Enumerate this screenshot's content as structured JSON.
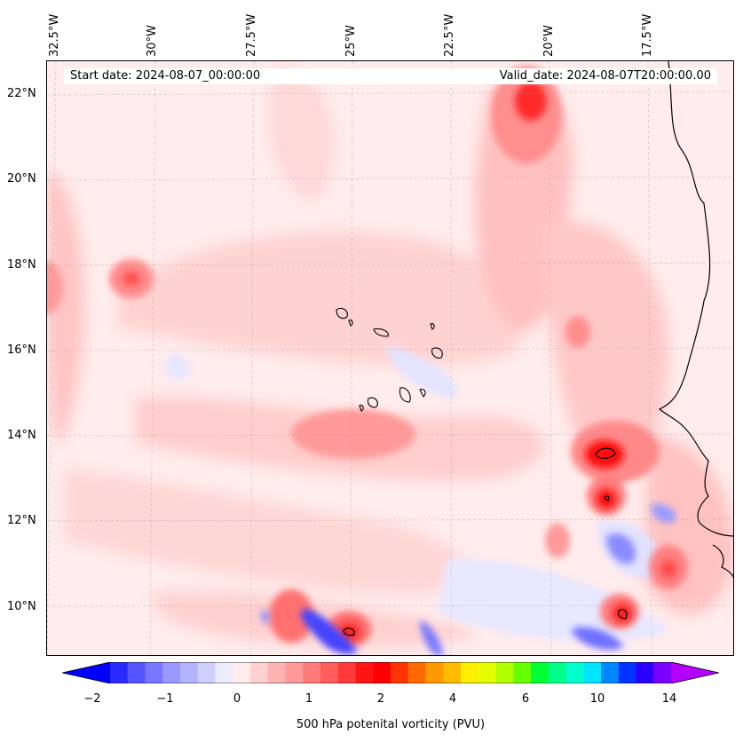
{
  "header": {
    "start_date": "Start date: 2024-08-07_00:00:00",
    "valid_date": "Valid_date: 2024-08-07T20:00:00.00"
  },
  "lon_labels": [
    "32.5°W",
    "30°W",
    "27.5°W",
    "25°W",
    "22.5°W",
    "20°W",
    "17.5°W"
  ],
  "lat_labels": [
    "22°N",
    "20°N",
    "18°N",
    "16°N",
    "14°N",
    "12°N",
    "10°N"
  ],
  "colorbar": {
    "label": "500 hPa potenital vorticity (PVU)",
    "ticks": [
      "−2",
      "−1",
      "0",
      "1",
      "2",
      "4",
      "6",
      "10",
      "14"
    ],
    "colors": [
      "#0000ff",
      "#2a2aff",
      "#5555ff",
      "#7777ff",
      "#9999ff",
      "#b3b3ff",
      "#cfcfff",
      "#ececff",
      "#ffecec",
      "#ffd0d0",
      "#ffb3b3",
      "#ff9a9a",
      "#ff7a7a",
      "#ff5c5c",
      "#ff3a3a",
      "#ff1414",
      "#ff0000",
      "#ff3300",
      "#ff6a00",
      "#ff9900",
      "#ffbb00",
      "#ffee00",
      "#e6ff00",
      "#b3ff00",
      "#66ff00",
      "#00ff33",
      "#00ff88",
      "#00ffcc",
      "#00e5ff",
      "#0088ff",
      "#0033ff",
      "#2a00ff",
      "#7a00ff",
      "#b400ff"
    ]
  },
  "colors": {
    "pv_low": "#ffecec",
    "pv_mid": "#ffc6c6",
    "pv_high": "#ff5050",
    "pv_max": "#ff0000",
    "pv_negative": "#8080ff",
    "coastline": "#000000"
  }
}
